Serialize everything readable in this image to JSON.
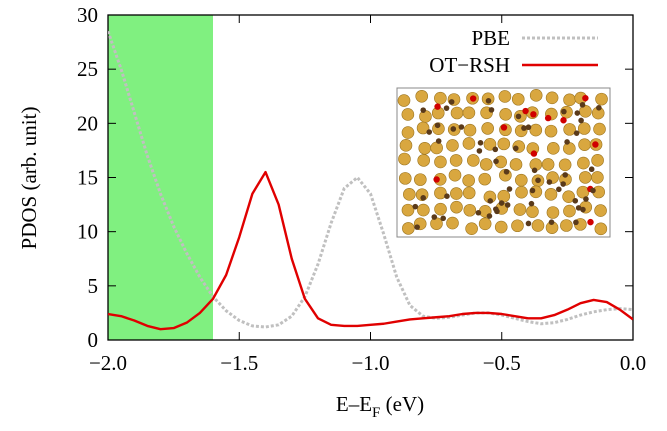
{
  "chart_data": {
    "type": "line",
    "x_label": "E–EF (eV)",
    "y_label": "PDOS (arb. unit)",
    "x": [
      -2.0,
      -1.95,
      -1.9,
      -1.85,
      -1.8,
      -1.75,
      -1.7,
      -1.65,
      -1.6,
      -1.55,
      -1.5,
      -1.45,
      -1.4,
      -1.35,
      -1.3,
      -1.25,
      -1.2,
      -1.15,
      -1.1,
      -1.05,
      -1.0,
      -0.95,
      -0.9,
      -0.85,
      -0.8,
      -0.75,
      -0.7,
      -0.65,
      -0.6,
      -0.55,
      -0.5,
      -0.45,
      -0.4,
      -0.35,
      -0.3,
      -0.25,
      -0.2,
      -0.15,
      -0.1,
      -0.05,
      0.0
    ],
    "series": [
      {
        "name": "PBE",
        "color": "#c0c0c0",
        "dashed": true,
        "values": [
          28.5,
          25,
          21,
          17,
          13.5,
          10.5,
          8,
          5.8,
          4.0,
          2.7,
          1.8,
          1.3,
          1.2,
          1.4,
          2.2,
          4.0,
          7.0,
          10.8,
          14,
          15,
          13.5,
          9.8,
          5.8,
          3.2,
          2.2,
          2.0,
          2.1,
          2.3,
          2.5,
          2.5,
          2.3,
          2.0,
          1.7,
          1.5,
          1.6,
          1.9,
          2.3,
          2.6,
          2.8,
          2.9,
          2.8
        ]
      },
      {
        "name": "OT−RSH",
        "color": "#e00000",
        "dashed": false,
        "values": [
          2.4,
          2.2,
          1.8,
          1.3,
          1.0,
          1.1,
          1.6,
          2.5,
          3.8,
          6.0,
          9.5,
          13.5,
          15.5,
          12.5,
          7.5,
          3.8,
          2.0,
          1.4,
          1.3,
          1.3,
          1.4,
          1.5,
          1.7,
          1.9,
          2.0,
          2.1,
          2.2,
          2.4,
          2.5,
          2.5,
          2.4,
          2.2,
          2.0,
          2.0,
          2.3,
          2.8,
          3.4,
          3.7,
          3.5,
          2.8,
          1.9
        ]
      }
    ],
    "shaded_region": {
      "range": [
        -2.0,
        -1.6
      ],
      "color": "#80f080"
    },
    "xlim": [
      -2.0,
      0.0
    ],
    "ylim": [
      0,
      30
    ],
    "xticks": [
      {
        "value": -2.0,
        "label": "−2.0"
      },
      {
        "value": -1.5,
        "label": "−1.5"
      },
      {
        "value": -1.0,
        "label": "−1.0"
      },
      {
        "value": -0.5,
        "label": "−0.5"
      },
      {
        "value": 0.0,
        "label": "0.0"
      }
    ],
    "yticks": [
      0,
      5,
      10,
      15,
      20,
      25,
      30
    ],
    "legend": "top-right"
  }
}
